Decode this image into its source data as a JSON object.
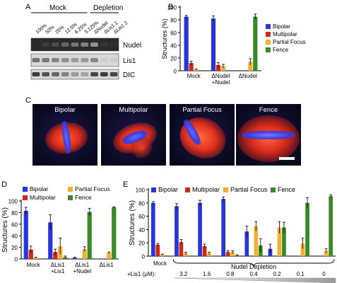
{
  "panel_labels": {
    "a": "A",
    "b": "B",
    "c": "C",
    "d": "D",
    "e": "E"
  },
  "panel_a": {
    "group_labels": [
      "Mock",
      "Depletion"
    ],
    "lane_labels": [
      "100%",
      "50%",
      "25%",
      "12.5%",
      "6.25%",
      "3.125%",
      "ΔNudel",
      "ΔLis1 1",
      "ΔLis1 2"
    ],
    "row_labels": [
      "Nudel",
      "Lis1",
      "DIC"
    ]
  },
  "panel_c": {
    "titles": [
      "Bipolar",
      "Multipolar",
      "Partial Focus",
      "Fence"
    ]
  },
  "colors": {
    "bipolar": "#2a35d6",
    "multipolar": "#cc2a1a",
    "partial_focus": "#f0b030",
    "fence": "#3a8a2a"
  },
  "chart_data": [
    {
      "type": "bar",
      "panel": "B",
      "ylabel": "Structures (%)",
      "ylim": [
        0,
        100
      ],
      "yticks": [
        0,
        20,
        40,
        60,
        80,
        100
      ],
      "categories": [
        "Mock",
        "ΔNudel\n+Nudel",
        "ΔNudel"
      ],
      "category_lines": [
        [
          "Mock"
        ],
        [
          "ΔNudel",
          "+Nudel"
        ],
        [
          "ΔNudel"
        ]
      ],
      "legend": "right",
      "series": [
        {
          "name": "Bipolar",
          "values": [
            85,
            82,
            0
          ],
          "errors": [
            2,
            4,
            0
          ]
        },
        {
          "name": "Multipolar",
          "values": [
            12,
            9,
            0
          ],
          "errors": [
            3,
            4,
            0
          ]
        },
        {
          "name": "Partial Focus",
          "values": [
            2,
            7,
            14
          ],
          "errors": [
            1,
            3,
            5
          ]
        },
        {
          "name": "Fence",
          "values": [
            0,
            1,
            85
          ],
          "errors": [
            0,
            0,
            4
          ]
        }
      ]
    },
    {
      "type": "bar",
      "panel": "D",
      "ylabel": "Structures (%)",
      "ylim": [
        0,
        100
      ],
      "yticks": [
        0,
        20,
        40,
        60,
        80,
        100
      ],
      "categories": [
        "Mock",
        "ΔLis1\n+Lis1",
        "ΔLis1\n+Nudel",
        "ΔLis1"
      ],
      "category_lines": [
        [
          "Mock"
        ],
        [
          "ΔLis1",
          "+Lis1"
        ],
        [
          "ΔLis1",
          "+Nudel"
        ],
        [
          "ΔLis1"
        ]
      ],
      "legend": "top",
      "series": [
        {
          "name": "Bipolar",
          "values": [
            83,
            63,
            2,
            0
          ],
          "errors": [
            6,
            13,
            1,
            0
          ]
        },
        {
          "name": "Multipolar",
          "values": [
            16,
            12,
            0,
            0
          ],
          "errors": [
            6,
            5,
            0,
            0
          ]
        },
        {
          "name": "Partial Focus",
          "values": [
            2,
            22,
            17,
            11
          ],
          "errors": [
            1,
            14,
            4,
            1
          ]
        },
        {
          "name": "Fence",
          "values": [
            0,
            3,
            81,
            89
          ],
          "errors": [
            0,
            2,
            6,
            1
          ]
        }
      ]
    },
    {
      "type": "bar",
      "panel": "E",
      "ylabel": "Structures (%)",
      "ylim": [
        0,
        100
      ],
      "yticks": [
        0,
        20,
        40,
        60,
        80,
        100
      ],
      "categories": [
        "Mock",
        "3.2",
        "1.6",
        "0.8",
        "0.4",
        "0.2",
        "0.1",
        "0"
      ],
      "group_label": "Nudel Depletion",
      "x_prefix_label": "+Lis1 (μM):",
      "legend": "top",
      "series": [
        {
          "name": "Bipolar",
          "values": [
            80,
            75,
            80,
            86,
            37,
            11,
            0,
            0
          ],
          "errors": [
            2,
            4,
            4,
            3,
            8,
            7,
            0,
            0
          ]
        },
        {
          "name": "Multipolar",
          "values": [
            17,
            21,
            15,
            6,
            0,
            0,
            0,
            0
          ],
          "errors": [
            2,
            4,
            3,
            2,
            0,
            0,
            0,
            0
          ]
        },
        {
          "name": "Partial Focus",
          "values": [
            2,
            4,
            4,
            6,
            45,
            43,
            19,
            8
          ],
          "errors": [
            1,
            2,
            2,
            2,
            7,
            9,
            8,
            3
          ]
        },
        {
          "name": "Fence",
          "values": [
            0,
            0,
            0,
            1,
            16,
            43,
            80,
            90
          ],
          "errors": [
            0,
            0,
            0,
            1,
            10,
            8,
            8,
            2
          ]
        }
      ]
    }
  ]
}
